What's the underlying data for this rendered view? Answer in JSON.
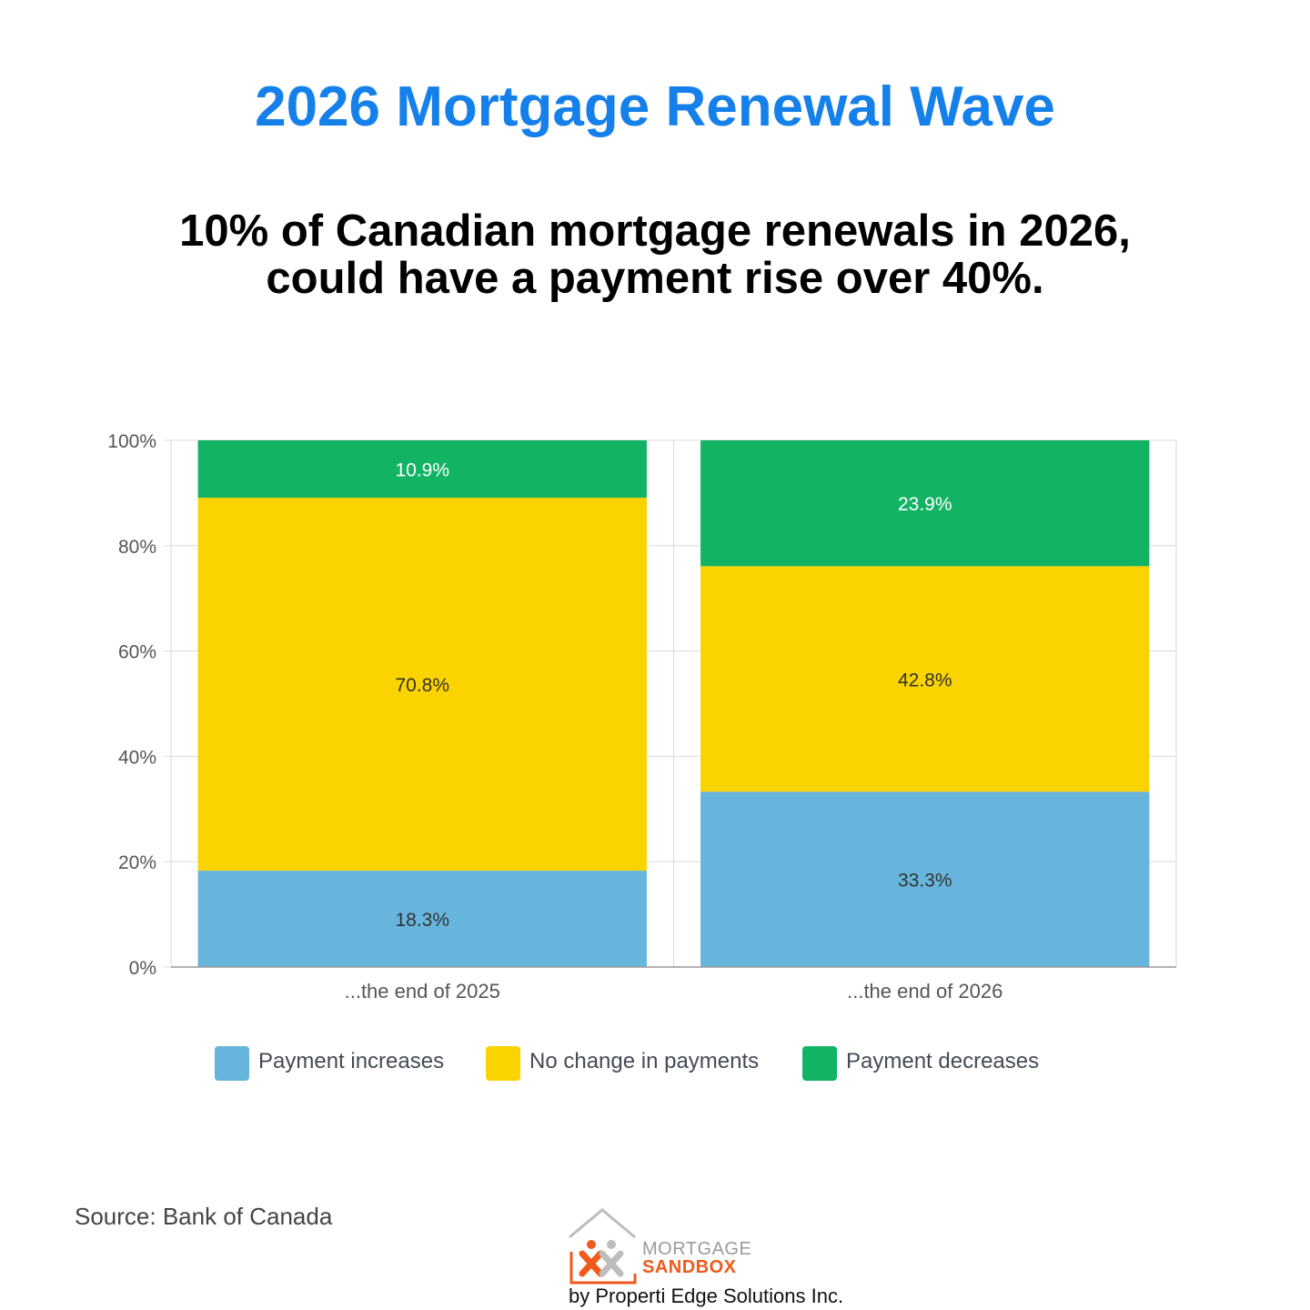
{
  "header": {
    "title": "2026 Mortgage Renewal Wave",
    "subtitle_line1": "10% of Canadian mortgage renewals in 2026,",
    "subtitle_line2": "could have a payment rise over 40%."
  },
  "chart_data": {
    "type": "bar",
    "stacked": true,
    "categories": [
      "...the end of 2025",
      "...the end of 2026"
    ],
    "series": [
      {
        "name": "Payment increases",
        "color": "#67b5dc",
        "values": [
          18.3,
          33.3
        ],
        "labels": [
          "18.3%",
          "33.3%"
        ]
      },
      {
        "name": "No change in payments",
        "color": "#fad300",
        "values": [
          70.8,
          42.8
        ],
        "labels": [
          "70.8%",
          "42.8%"
        ]
      },
      {
        "name": "Payment decreases",
        "color": "#12b365",
        "values": [
          10.9,
          23.9
        ],
        "labels": [
          "10.9%",
          "23.9%"
        ]
      }
    ],
    "ylim": [
      0,
      100
    ],
    "yticks": [
      0,
      20,
      40,
      60,
      80,
      100
    ],
    "ytick_labels": [
      "0%",
      "20%",
      "40%",
      "60%",
      "80%",
      "100%"
    ],
    "grid": true,
    "legend_position": "bottom"
  },
  "footer": {
    "source": "Source: Bank of Canada",
    "logo_word1": "MORTGAGE",
    "logo_word2": "SANDBOX",
    "byline": "by Properti Edge Solutions Inc."
  }
}
